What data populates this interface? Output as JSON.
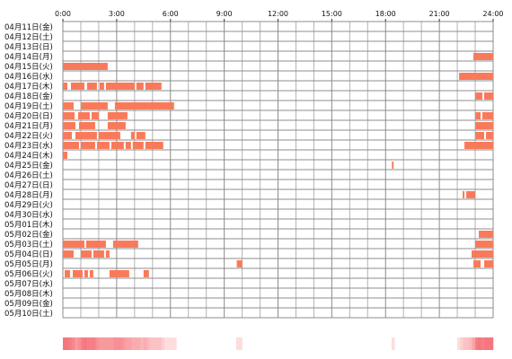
{
  "chart_data": {
    "type": "timeline",
    "x_ticks": [
      "0:00",
      "3:00",
      "6:00",
      "9:00",
      "12:00",
      "15:00",
      "18:00",
      "21:00",
      "24:00"
    ],
    "xlim_hours": [
      0,
      24
    ],
    "grid": true,
    "rows": [
      {
        "label": "04月11日(金)",
        "segments": []
      },
      {
        "label": "04月12日(土)",
        "segments": []
      },
      {
        "label": "04月13日(日)",
        "segments": []
      },
      {
        "label": "04月14日(月)",
        "segments": [
          [
            22.9,
            24.0
          ]
        ]
      },
      {
        "label": "04月15日(火)",
        "segments": [
          [
            0.0,
            2.5
          ]
        ]
      },
      {
        "label": "04月16日(水)",
        "segments": [
          [
            22.1,
            24.0
          ]
        ]
      },
      {
        "label": "04月17日(木)",
        "segments": [
          [
            0.0,
            0.25
          ],
          [
            0.45,
            1.2
          ],
          [
            1.35,
            1.9
          ],
          [
            2.05,
            2.3
          ],
          [
            2.4,
            4.0
          ],
          [
            4.1,
            4.5
          ],
          [
            4.6,
            5.5
          ]
        ]
      },
      {
        "label": "04月18日(金)",
        "segments": [
          [
            23.0,
            23.4
          ],
          [
            23.5,
            24.0
          ]
        ]
      },
      {
        "label": "04月19日(土)",
        "segments": [
          [
            0.0,
            0.6
          ],
          [
            1.0,
            2.5
          ],
          [
            2.9,
            6.2
          ]
        ]
      },
      {
        "label": "04月20日(日)",
        "segments": [
          [
            0.0,
            0.65
          ],
          [
            0.85,
            1.5
          ],
          [
            1.6,
            2.0
          ],
          [
            2.5,
            3.6
          ],
          [
            23.0,
            23.3
          ],
          [
            23.4,
            24.0
          ]
        ]
      },
      {
        "label": "04月21日(月)",
        "segments": [
          [
            0.0,
            0.7
          ],
          [
            0.9,
            1.8
          ],
          [
            2.5,
            3.5
          ],
          [
            23.0,
            24.0
          ]
        ]
      },
      {
        "label": "04月22日(火)",
        "segments": [
          [
            0.0,
            0.5
          ],
          [
            0.7,
            1.9
          ],
          [
            2.0,
            3.2
          ],
          [
            3.8,
            4.0
          ],
          [
            4.1,
            4.6
          ],
          [
            23.0,
            23.5
          ],
          [
            23.6,
            24.0
          ]
        ]
      },
      {
        "label": "04月23日(水)",
        "segments": [
          [
            0.0,
            0.9
          ],
          [
            1.0,
            1.8
          ],
          [
            1.9,
            2.6
          ],
          [
            2.7,
            3.4
          ],
          [
            3.5,
            3.8
          ],
          [
            3.9,
            4.5
          ],
          [
            4.6,
            5.6
          ],
          [
            22.4,
            24.0
          ]
        ]
      },
      {
        "label": "04月24日(木)",
        "segments": [
          [
            0.0,
            0.25
          ]
        ]
      },
      {
        "label": "04月25日(金)",
        "segments": [
          [
            18.35,
            18.45
          ]
        ]
      },
      {
        "label": "04月26日(土)",
        "segments": []
      },
      {
        "label": "04月27日(日)",
        "segments": []
      },
      {
        "label": "04月28日(月)",
        "segments": [
          [
            22.3,
            22.4
          ],
          [
            22.5,
            23.0
          ]
        ]
      },
      {
        "label": "04月29日(火)",
        "segments": []
      },
      {
        "label": "04月30日(水)",
        "segments": []
      },
      {
        "label": "05月01日(木)",
        "segments": []
      },
      {
        "label": "05月02日(金)",
        "segments": [
          [
            23.2,
            24.0
          ]
        ]
      },
      {
        "label": "05月03日(土)",
        "segments": [
          [
            0.0,
            1.2
          ],
          [
            1.3,
            2.4
          ],
          [
            2.8,
            4.2
          ],
          [
            23.0,
            24.0
          ]
        ]
      },
      {
        "label": "05月04日(日)",
        "segments": [
          [
            0.0,
            0.6
          ],
          [
            1.0,
            1.6
          ],
          [
            1.7,
            2.3
          ],
          [
            2.4,
            2.6
          ],
          [
            22.8,
            24.0
          ]
        ]
      },
      {
        "label": "05月05日(月)",
        "segments": [
          [
            9.7,
            10.0
          ],
          [
            22.9,
            23.3
          ],
          [
            23.5,
            24.0
          ]
        ]
      },
      {
        "label": "05月06日(火)",
        "segments": [
          [
            0.1,
            0.4
          ],
          [
            0.55,
            1.1
          ],
          [
            1.2,
            1.4
          ],
          [
            1.5,
            1.7
          ],
          [
            2.6,
            3.7
          ],
          [
            4.5,
            4.8
          ]
        ]
      },
      {
        "label": "05月07日(水)",
        "segments": []
      },
      {
        "label": "05月08日(木)",
        "segments": []
      },
      {
        "label": "05月09日(金)",
        "segments": []
      },
      {
        "label": "05月10日(土)",
        "segments": []
      }
    ],
    "bar_color": "#f97a5b",
    "heatmap_colors": {
      "low": "#fff6f2",
      "high": "#f5767f"
    }
  }
}
